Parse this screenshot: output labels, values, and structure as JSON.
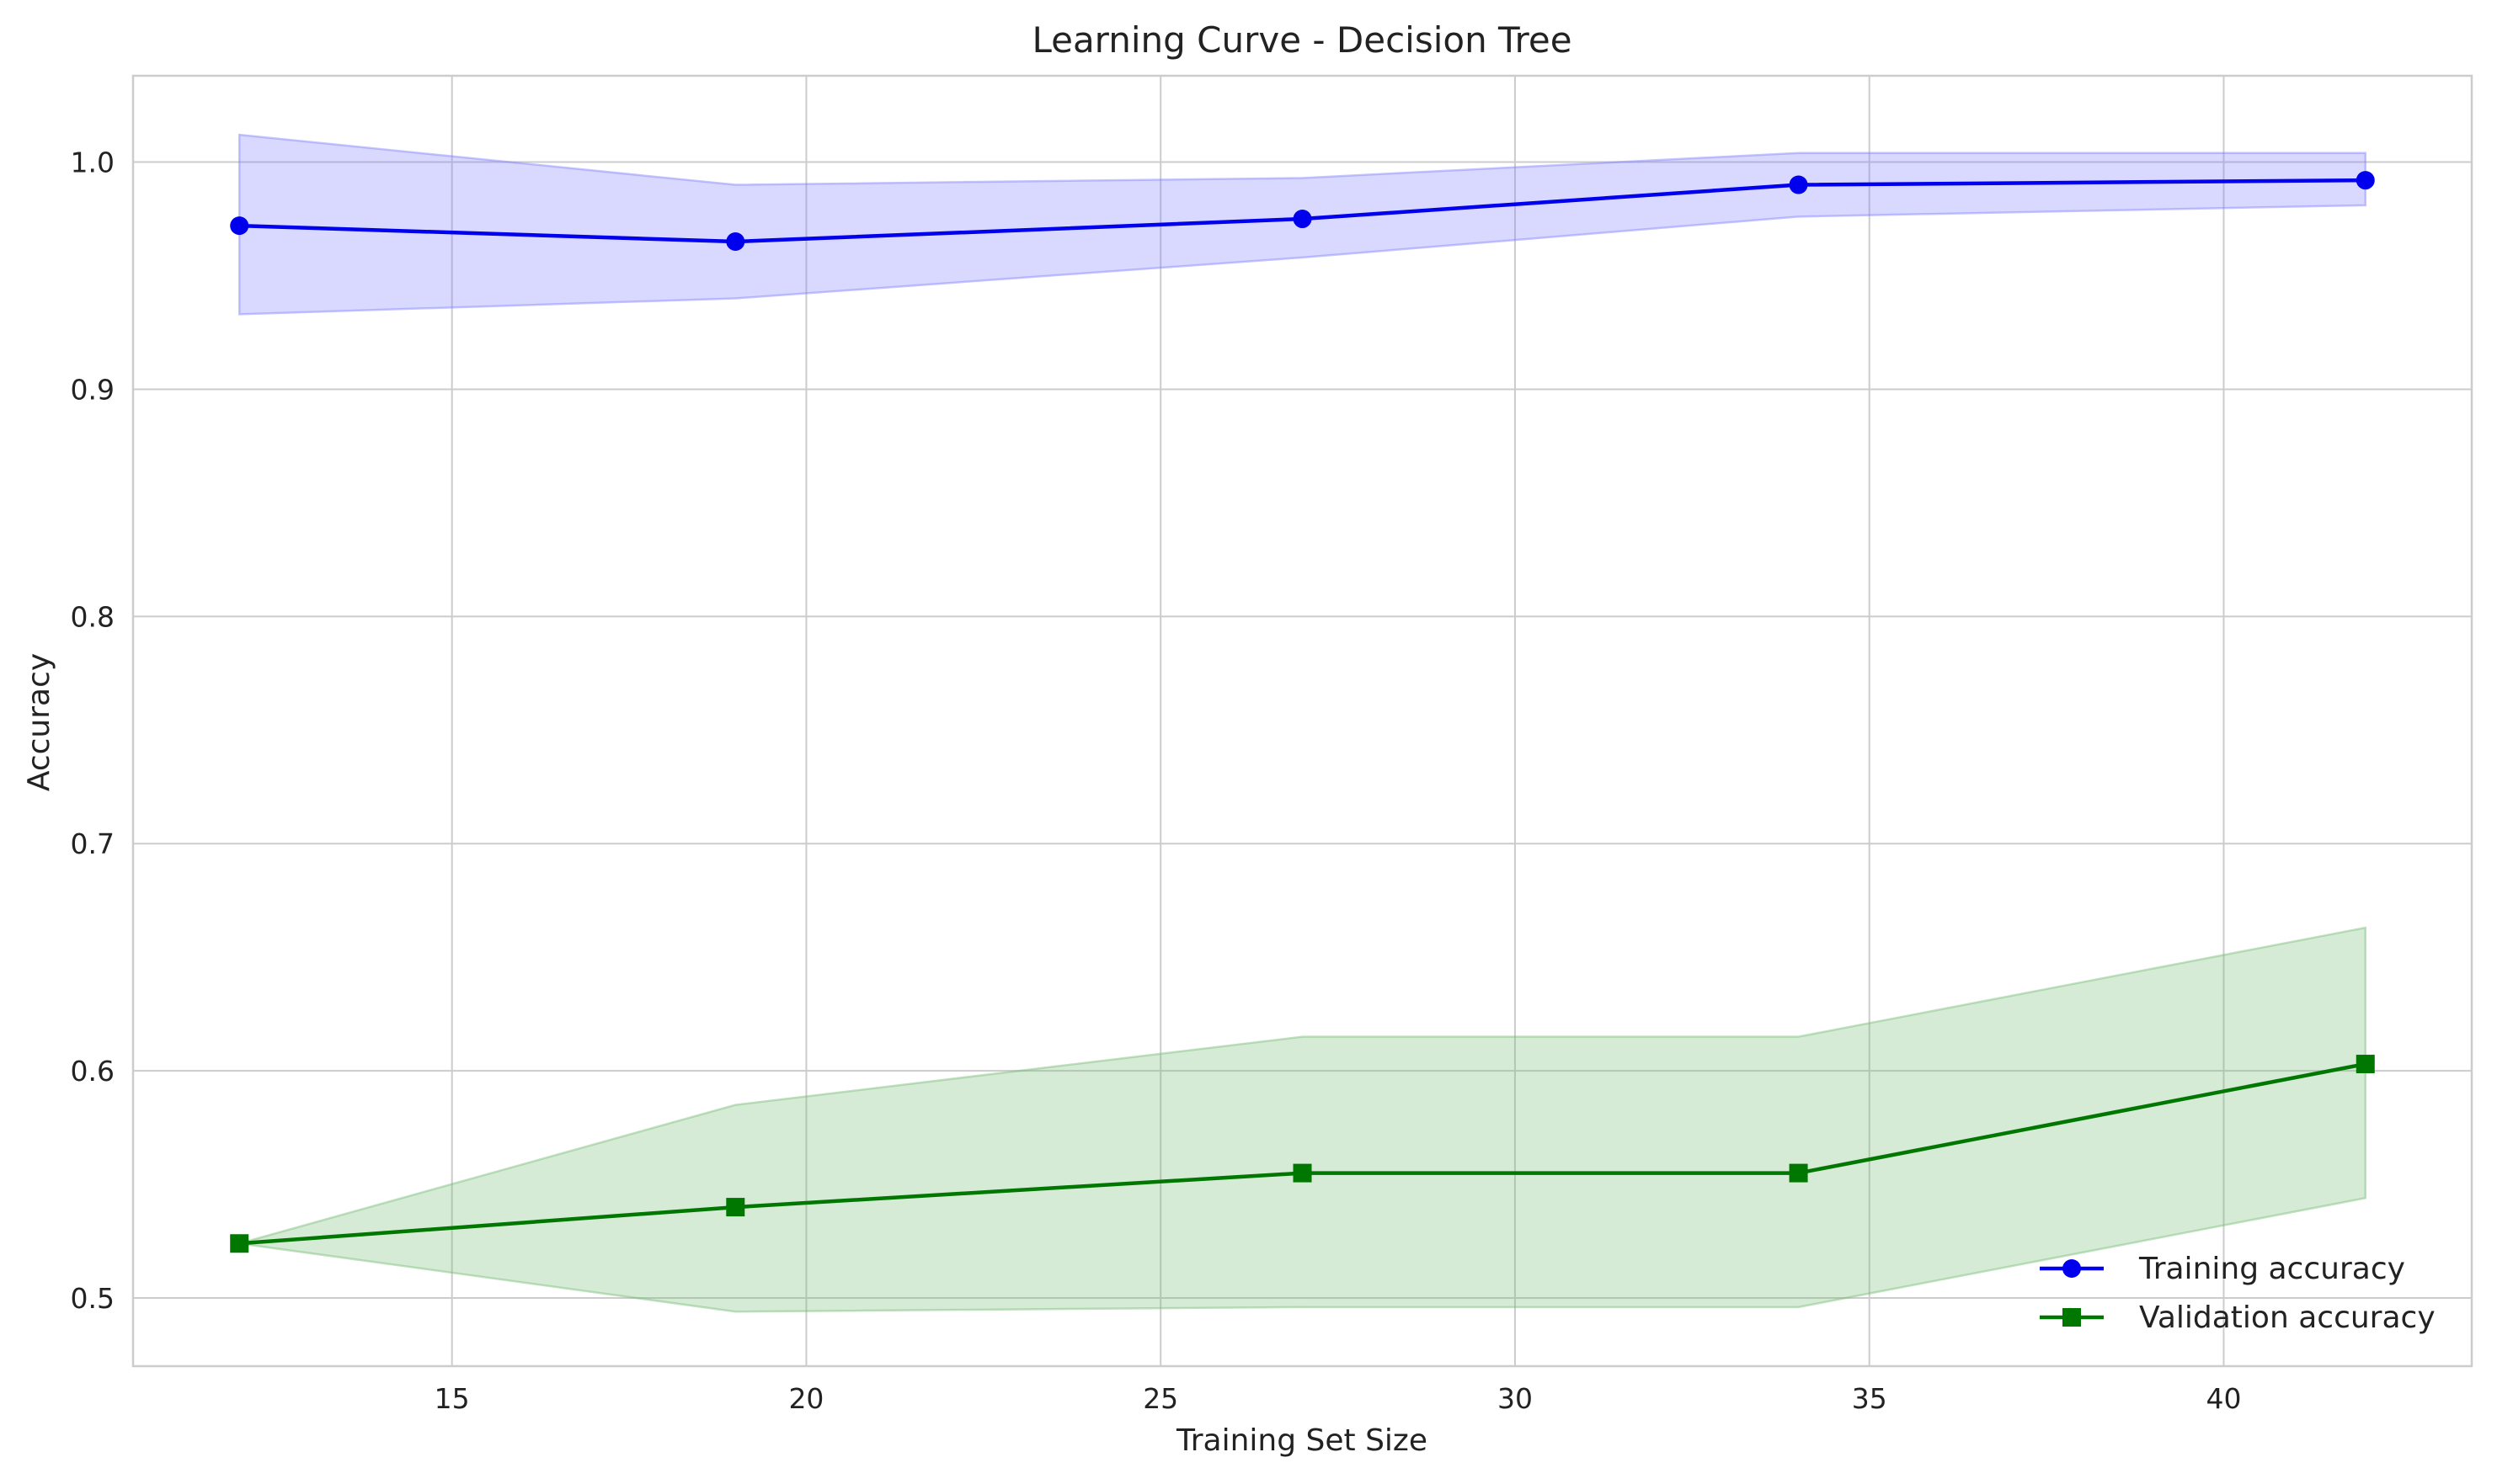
{
  "chart_data": {
    "type": "line",
    "title": "Learning Curve - Decision Tree",
    "xlabel": "Training Set Size",
    "ylabel": "Accuracy",
    "xlim": [
      10.5,
      43.5
    ],
    "ylim": [
      0.47,
      1.038
    ],
    "xticks": [
      15,
      20,
      25,
      30,
      35,
      40
    ],
    "yticks": [
      0.5,
      0.6,
      0.7,
      0.8,
      0.9,
      1.0
    ],
    "grid": true,
    "legend_position": "bottom-right",
    "x": [
      12,
      19,
      27,
      34,
      42
    ],
    "series": [
      {
        "name": "Training accuracy",
        "color": "#0000ee",
        "marker": "circle",
        "values": [
          0.972,
          0.965,
          0.975,
          0.99,
          0.992
        ],
        "band_upper": [
          1.012,
          0.99,
          0.993,
          1.004,
          1.004
        ],
        "band_lower": [
          0.933,
          0.94,
          0.958,
          0.976,
          0.981
        ],
        "band_color": "#8080ff"
      },
      {
        "name": "Validation accuracy",
        "color": "#007700",
        "marker": "square",
        "values": [
          0.524,
          0.54,
          0.555,
          0.555,
          0.603
        ],
        "band_upper": [
          0.524,
          0.585,
          0.615,
          0.615,
          0.663
        ],
        "band_lower": [
          0.524,
          0.494,
          0.496,
          0.496,
          0.544
        ],
        "band_color": "#78bc78"
      }
    ]
  }
}
